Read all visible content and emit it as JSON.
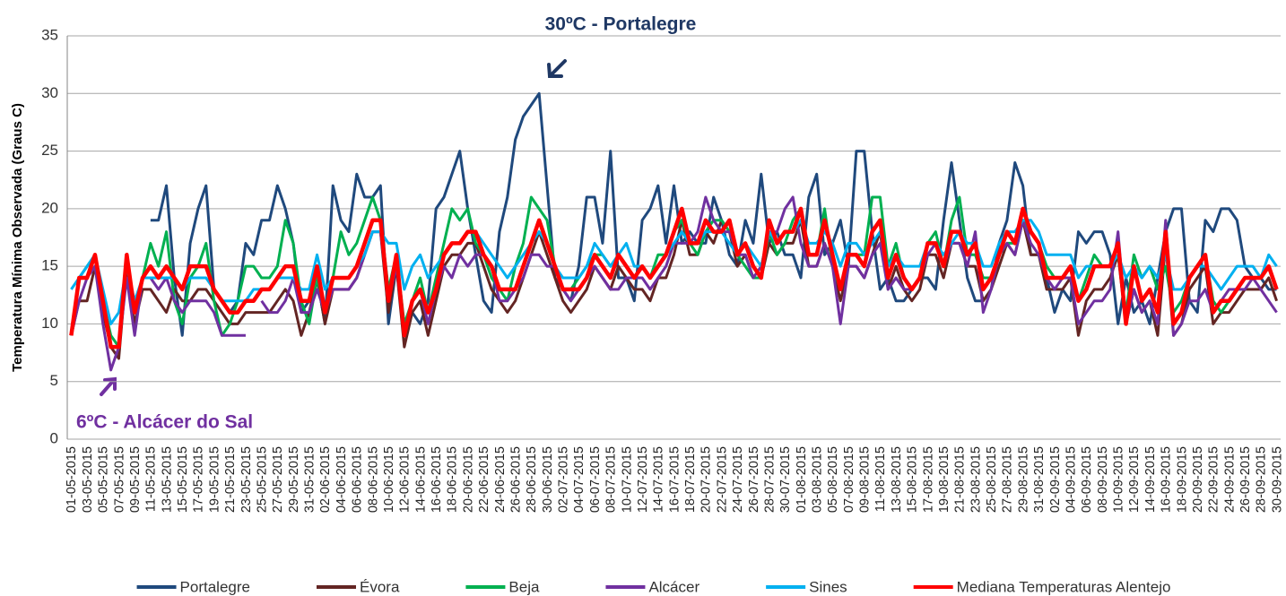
{
  "chart_data": {
    "type": "line",
    "ylabel": "Temperatura Mínima Observada (Graus C)",
    "annotations": [
      "30ºC - Portalegre",
      "6ºC - Alcácer do Sal"
    ],
    "categories": [
      "01-05-2015",
      null,
      "03-05-2015",
      null,
      "05-05-2015",
      null,
      "07-05-2015",
      null,
      "09-05-2015",
      null,
      "11-05-2015",
      null,
      "13-05-2015",
      null,
      "15-05-2015",
      null,
      "17-05-2015",
      null,
      "19-05-2015",
      null,
      "21-05-2015",
      null,
      "23-05-2015",
      null,
      "25-05-2015",
      null,
      "27-05-2015",
      null,
      "29-05-2015",
      null,
      "31-05-2015",
      null,
      "02-06-2015",
      null,
      "04-06-2015",
      null,
      "06-06-2015",
      null,
      "08-06-2015",
      null,
      "10-06-2015",
      null,
      "12-06-2015",
      null,
      "14-06-2015",
      null,
      "16-06-2015",
      null,
      "18-06-2015",
      null,
      "20-06-2015",
      null,
      "22-06-2015",
      null,
      "24-06-2015",
      null,
      "26-06-2015",
      null,
      "28-06-2015",
      null,
      "30-06-2015",
      null,
      "02-07-2015",
      null,
      "04-07-2015",
      null,
      "06-07-2015",
      null,
      "08-07-2015",
      null,
      "10-07-2015",
      null,
      "12-07-2015",
      null,
      "14-07-2015",
      null,
      "16-07-2015",
      null,
      "18-07-2015",
      null,
      "20-07-2015",
      null,
      "22-07-2015",
      null,
      "24-07-2015",
      null,
      "26-07-2015",
      null,
      "28-07-2015",
      null,
      "30-07-2015",
      null,
      "01-08-2015",
      null,
      "03-08-2015",
      null,
      "05-08-2015",
      null,
      "07-08-2015",
      null,
      "09-08-2015",
      null,
      "11-08-2015",
      null,
      "13-08-2015",
      null,
      "15-08-2015",
      null,
      "17-08-2015",
      null,
      "19-08-2015",
      null,
      "21-08-2015",
      null,
      "23-08-2015",
      null,
      "25-08-2015",
      null,
      "27-08-2015",
      null,
      "29-08-2015",
      null,
      "31-08-2015",
      null,
      "02-09-2015",
      null,
      "04-09-2015",
      null,
      "06-09-2015",
      null,
      "08-09-2015",
      null,
      "10-09-2015",
      null,
      "12-09-2015",
      null,
      "14-09-2015",
      null,
      "16-09-2015",
      null,
      "18-09-2015",
      null,
      "20-09-2015",
      null,
      "22-09-2015",
      null,
      "24-09-2015",
      null,
      "26-09-2015",
      null,
      "28-09-2015",
      null,
      "30-09-2015"
    ],
    "series": [
      {
        "name": "Portalegre",
        "color": "#1f497d",
        "values": [
          null,
          null,
          null,
          null,
          null,
          null,
          null,
          null,
          null,
          null,
          19,
          19,
          22,
          14,
          9,
          17,
          20,
          22,
          13,
          12,
          11,
          12,
          17,
          16,
          19,
          19,
          22,
          20,
          17,
          11,
          12,
          14,
          10,
          22,
          19,
          18,
          23,
          21,
          21,
          22,
          10,
          15,
          9,
          11,
          10,
          12,
          20,
          21,
          23,
          25,
          20,
          16,
          12,
          11,
          18,
          21,
          26,
          28,
          29,
          30,
          22,
          14,
          13,
          12,
          15,
          21,
          21,
          17,
          25,
          14,
          14,
          12,
          19,
          20,
          22,
          17,
          22,
          17,
          18,
          17,
          17,
          21,
          19,
          16,
          15,
          19,
          17,
          23,
          17,
          18,
          16,
          16,
          14,
          21,
          23,
          16,
          17,
          19,
          15,
          25,
          25,
          18,
          13,
          14,
          12,
          12,
          13,
          14,
          14,
          13,
          19,
          24,
          19,
          14,
          12,
          12,
          13,
          17,
          19,
          24,
          22,
          16,
          16,
          14,
          11,
          13,
          12,
          18,
          17,
          18,
          18,
          16,
          10,
          14,
          11,
          12,
          10,
          14,
          18,
          20,
          20,
          12,
          11,
          19,
          18,
          20,
          20,
          19,
          15,
          14,
          14,
          13,
          13
        ]
      },
      {
        "name": "Évora",
        "color": "#632523",
        "values": [
          9,
          12,
          12,
          15,
          11,
          8,
          7,
          15,
          10,
          13,
          13,
          12,
          11,
          13,
          12,
          12,
          13,
          13,
          12,
          11,
          10,
          10,
          11,
          11,
          11,
          11,
          12,
          13,
          12,
          9,
          11,
          14,
          10,
          13,
          13,
          13,
          14,
          16,
          18,
          18,
          11,
          15,
          8,
          11,
          12,
          9,
          12,
          15,
          16,
          16,
          17,
          17,
          15,
          13,
          12,
          11,
          12,
          14,
          16,
          18,
          16,
          14,
          12,
          11,
          12,
          13,
          15,
          14,
          13,
          15,
          14,
          13,
          13,
          12,
          14,
          14,
          16,
          19,
          16,
          16,
          18,
          17,
          19,
          18,
          15,
          16,
          14,
          14,
          17,
          16,
          17,
          17,
          19,
          15,
          15,
          17,
          15,
          12,
          15,
          15,
          14,
          16,
          18,
          13,
          15,
          13,
          12,
          13,
          16,
          16,
          14,
          17,
          17,
          15,
          15,
          12,
          13,
          15,
          17,
          16,
          19,
          16,
          16,
          13,
          13,
          13,
          14,
          9,
          12,
          13,
          13,
          14,
          16,
          10,
          13,
          11,
          12,
          9,
          17,
          9,
          10,
          13,
          14,
          15,
          10,
          11,
          11,
          12,
          13,
          13,
          13,
          14,
          12
        ]
      },
      {
        "name": "Beja",
        "color": "#00b050",
        "values": [
          9,
          14,
          15,
          16,
          12,
          9,
          8,
          16,
          11,
          14,
          17,
          15,
          18,
          12,
          10,
          14,
          15,
          17,
          12,
          9,
          10,
          12,
          15,
          15,
          14,
          14,
          15,
          19,
          17,
          12,
          10,
          14,
          11,
          14,
          18,
          16,
          17,
          19,
          21,
          19,
          13,
          16,
          10,
          12,
          14,
          11,
          14,
          17,
          20,
          19,
          20,
          17,
          16,
          14,
          13,
          12,
          15,
          17,
          21,
          20,
          19,
          15,
          13,
          13,
          14,
          15,
          16,
          16,
          15,
          16,
          15,
          14,
          15,
          14,
          16,
          16,
          18,
          19,
          17,
          16,
          18,
          19,
          19,
          18,
          16,
          15,
          14,
          14,
          18,
          16,
          17,
          19,
          20,
          16,
          16,
          20,
          15,
          13,
          16,
          16,
          16,
          21,
          21,
          15,
          17,
          14,
          13,
          14,
          17,
          18,
          15,
          19,
          21,
          16,
          16,
          14,
          14,
          16,
          17,
          17,
          19,
          18,
          17,
          15,
          14,
          14,
          14,
          12,
          14,
          16,
          15,
          15,
          16,
          11,
          16,
          14,
          15,
          13,
          15,
          11,
          12,
          14,
          15,
          16,
          12,
          11,
          12,
          13,
          14,
          14,
          14,
          15,
          13
        ]
      },
      {
        "name": "Alcácer",
        "color": "#7030a0",
        "values": [
          9,
          12,
          14,
          15,
          10,
          6,
          8,
          14,
          9,
          14,
          14,
          13,
          14,
          12,
          11,
          12,
          12,
          12,
          11,
          9,
          9,
          9,
          9,
          null,
          12,
          11,
          11,
          12,
          14,
          11,
          11,
          13,
          11,
          13,
          13,
          13,
          14,
          16,
          18,
          18,
          12,
          15,
          9,
          12,
          13,
          10,
          13,
          15,
          14,
          16,
          15,
          16,
          16,
          15,
          12,
          12,
          13,
          14,
          16,
          16,
          15,
          15,
          13,
          12,
          13,
          14,
          15,
          14,
          13,
          13,
          14,
          14,
          14,
          13,
          14,
          15,
          17,
          17,
          17,
          18,
          21,
          19,
          18,
          18,
          16,
          16,
          14,
          15,
          18,
          18,
          20,
          21,
          17,
          15,
          15,
          17,
          15,
          10,
          15,
          15,
          14,
          16,
          17,
          13,
          14,
          13,
          13,
          14,
          16,
          17,
          15,
          17,
          17,
          15,
          18,
          11,
          13,
          16,
          17,
          16,
          19,
          17,
          16,
          14,
          13,
          14,
          14,
          10,
          11,
          12,
          12,
          13,
          18,
          10,
          13,
          11,
          12,
          10,
          19,
          9,
          10,
          12,
          12,
          13,
          11,
          12,
          13,
          13,
          13,
          14,
          13,
          12,
          11
        ]
      },
      {
        "name": "Sines",
        "color": "#00b0f0",
        "values": [
          13,
          14,
          15,
          16,
          13,
          10,
          11,
          15,
          12,
          14,
          14,
          14,
          14,
          14,
          13,
          14,
          14,
          14,
          13,
          12,
          12,
          12,
          12,
          13,
          13,
          13,
          14,
          14,
          14,
          13,
          13,
          16,
          13,
          14,
          14,
          14,
          15,
          16,
          18,
          18,
          17,
          17,
          13,
          15,
          16,
          14,
          15,
          16,
          17,
          17,
          18,
          18,
          17,
          16,
          15,
          14,
          15,
          16,
          17,
          18,
          17,
          15,
          14,
          14,
          14,
          15,
          17,
          16,
          15,
          16,
          17,
          15,
          15,
          14,
          15,
          16,
          17,
          18,
          17,
          17,
          18,
          18,
          18,
          17,
          16,
          17,
          16,
          15,
          18,
          17,
          18,
          18,
          19,
          17,
          17,
          18,
          17,
          15,
          17,
          17,
          16,
          17,
          18,
          15,
          16,
          15,
          15,
          15,
          17,
          17,
          16,
          17,
          18,
          17,
          17,
          15,
          15,
          17,
          18,
          18,
          19,
          19,
          18,
          16,
          16,
          16,
          16,
          14,
          15,
          15,
          15,
          15,
          16,
          14,
          15,
          14,
          15,
          14,
          16,
          13,
          13,
          14,
          15,
          15,
          14,
          13,
          14,
          15,
          15,
          15,
          14,
          16,
          15
        ]
      },
      {
        "name": "Mediana Temperaturas Alentejo",
        "color": "#ff0000",
        "values": [
          9,
          14,
          14,
          16,
          12,
          8,
          8,
          16,
          11,
          14,
          15,
          14,
          15,
          14,
          13,
          15,
          15,
          15,
          13,
          12,
          11,
          11,
          12,
          12,
          13,
          13,
          14,
          15,
          15,
          12,
          12,
          15,
          11,
          14,
          14,
          14,
          15,
          17,
          19,
          19,
          12,
          16,
          9,
          12,
          13,
          11,
          13,
          16,
          17,
          17,
          18,
          18,
          16,
          15,
          13,
          13,
          13,
          15,
          17,
          19,
          17,
          15,
          13,
          13,
          13,
          14,
          16,
          15,
          14,
          16,
          15,
          14,
          15,
          14,
          15,
          16,
          18,
          20,
          17,
          17,
          19,
          18,
          18,
          19,
          16,
          17,
          15,
          14,
          19,
          17,
          18,
          18,
          20,
          16,
          16,
          19,
          16,
          13,
          16,
          16,
          15,
          18,
          19,
          14,
          16,
          14,
          13,
          14,
          17,
          17,
          15,
          18,
          18,
          16,
          17,
          13,
          14,
          16,
          18,
          17,
          20,
          18,
          17,
          14,
          14,
          14,
          15,
          12,
          13,
          15,
          15,
          15,
          17,
          10,
          15,
          12,
          13,
          11,
          18,
          10,
          11,
          14,
          15,
          16,
          11,
          12,
          12,
          13,
          14,
          14,
          14,
          15,
          13
        ]
      }
    ],
    "ylim": [
      0,
      35
    ],
    "yticks": [
      0,
      5,
      10,
      15,
      20,
      25,
      30,
      35
    ],
    "grid": true,
    "legend": "bottom"
  }
}
